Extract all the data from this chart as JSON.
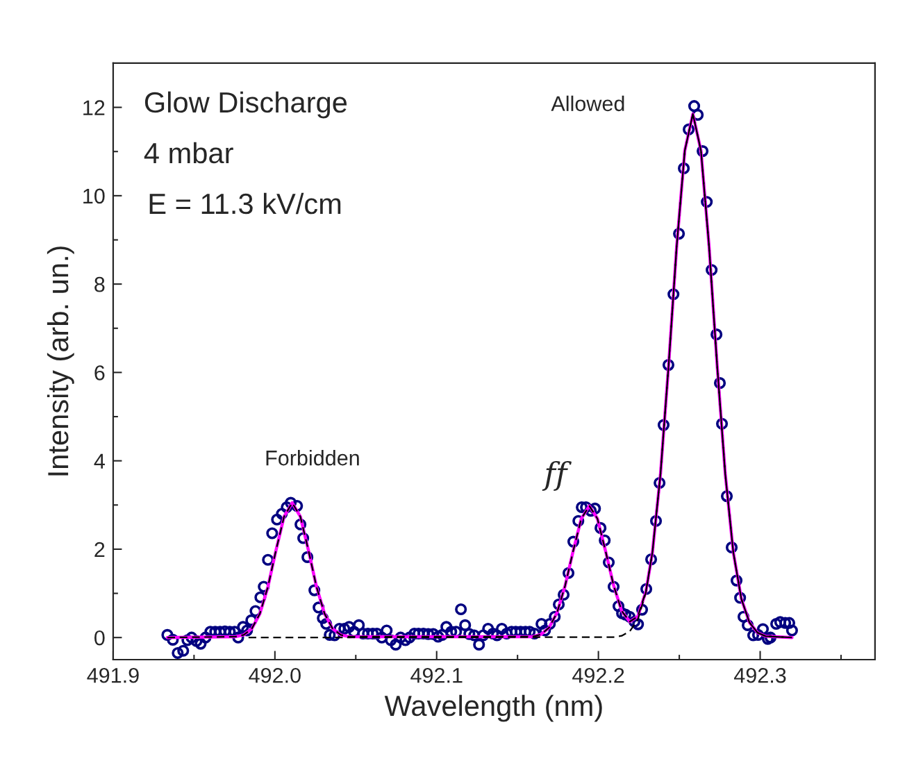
{
  "chart_data": {
    "type": "scatter",
    "xlabel": "Wavelength (nm)",
    "ylabel": "Intensity (arb. un.)",
    "xlim": [
      491.9,
      492.371
    ],
    "ylim": [
      -0.5,
      13
    ],
    "xticks": [
      491.9,
      {
        "value": 491.95,
        "label": null
      },
      {
        "value": 492.0,
        "label": "492.0"
      },
      {
        "value": 492.05,
        "label": null
      },
      {
        "value": 492.1,
        "label": "492.1"
      },
      {
        "value": 492.15,
        "label": null
      },
      {
        "value": 492.2,
        "label": "492.2"
      },
      {
        "value": 492.25,
        "label": null
      },
      {
        "value": 492.3,
        "label": "492.3"
      },
      {
        "value": 492.35,
        "label": null
      }
    ],
    "yticks": [
      0,
      {
        "value": 1,
        "label": null
      },
      2,
      {
        "value": 3,
        "label": null
      },
      4,
      {
        "value": 5,
        "label": null
      },
      6,
      {
        "value": 7,
        "label": null
      },
      8,
      {
        "value": 9,
        "label": null
      },
      10,
      {
        "value": 11,
        "label": null
      },
      12
    ],
    "grid": false,
    "legend": false,
    "annotations": [
      "Glow Discharge",
      "4 mbar",
      "E = 11.3 kV/cm",
      "Allowed",
      "Forbidden",
      "ff"
    ],
    "series": [
      {
        "marker": "circle",
        "color": "#000080",
        "x": [
          491.9335,
          491.9369,
          491.9399,
          491.9433,
          491.9459,
          491.9485,
          491.9515,
          491.9541,
          491.9571,
          491.9601,
          491.9631,
          491.9661,
          491.9691,
          491.9721,
          491.9751,
          491.9773,
          491.9803,
          491.9828,
          491.9854,
          491.988,
          491.991,
          491.9931,
          491.9957,
          491.9983,
          492.0013,
          492.0043,
          492.0073,
          492.0098,
          492.0137,
          492.0158,
          492.0175,
          492.0201,
          492.0244,
          492.027,
          492.0296,
          492.0317,
          492.0339,
          492.0369,
          492.0399,
          492.0429,
          492.0459,
          492.0489,
          492.0519,
          492.0545,
          492.0575,
          492.0605,
          492.0631,
          492.0661,
          492.0691,
          492.0717,
          492.0747,
          492.0777,
          492.0807,
          492.0832,
          492.0862,
          492.0888,
          492.0918,
          492.0948,
          492.0979,
          492.1009,
          492.1034,
          492.106,
          492.109,
          492.112,
          492.115,
          492.1176,
          492.1202,
          492.1232,
          492.1262,
          492.1288,
          492.1318,
          492.1348,
          492.1373,
          492.1403,
          492.1433,
          492.1463,
          492.1489,
          492.1519,
          492.1549,
          492.1575,
          492.1605,
          492.1648,
          492.167,
          492.17,
          492.173,
          492.1755,
          492.1785,
          492.1815,
          492.1845,
          492.1876,
          492.1897,
          492.1923,
          492.1953,
          492.1979,
          492.2013,
          492.2039,
          492.2064,
          492.2094,
          492.2124,
          492.2146,
          492.2167,
          492.2193,
          492.2223,
          492.2245,
          492.227,
          492.2296,
          492.2326,
          492.2356,
          492.2378,
          492.2403,
          492.2433,
          492.2464,
          492.2498,
          492.2528,
          492.2558,
          492.2592,
          492.2614,
          492.2644,
          492.267,
          492.27,
          492.273,
          492.2751,
          492.2764,
          492.2794,
          492.2824,
          492.2854,
          492.2876,
          492.2897,
          492.2923,
          492.2957,
          492.2987,
          492.3017,
          492.3047,
          492.3064,
          492.3099,
          492.3124,
          492.3155,
          492.318,
          492.3197
        ],
        "values": [
          0.06,
          -0.05,
          -0.35,
          -0.3,
          -0.06,
          0,
          -0.08,
          -0.14,
          0,
          0.13,
          0.13,
          0.13,
          0.14,
          0.13,
          0.13,
          0,
          0.24,
          0.16,
          0.39,
          0.6,
          0.91,
          1.15,
          1.76,
          2.36,
          2.67,
          2.8,
          2.95,
          3.05,
          2.98,
          2.56,
          2.25,
          1.82,
          1.07,
          0.68,
          0.44,
          0.31,
          0.06,
          0.05,
          0.2,
          0.2,
          0.24,
          0.13,
          0.28,
          0.09,
          0.09,
          0.09,
          0.09,
          0,
          0.16,
          -0.06,
          -0.16,
          0,
          -0.06,
          0,
          0.09,
          0.09,
          0.09,
          0.08,
          0.08,
          0.02,
          0.06,
          0.24,
          0.13,
          0.13,
          0.64,
          0.28,
          0.08,
          0.05,
          -0.16,
          0.05,
          0.2,
          0.09,
          0.05,
          0.2,
          0.09,
          0.13,
          0.13,
          0.13,
          0.13,
          0.13,
          0.09,
          0.31,
          0.16,
          0.31,
          0.47,
          0.75,
          0.97,
          1.46,
          2.17,
          2.64,
          2.95,
          2.95,
          2.87,
          2.92,
          2.48,
          2.2,
          1.7,
          1.15,
          0.71,
          0.55,
          0.52,
          0.47,
          0.36,
          0.3,
          0.63,
          1.1,
          1.77,
          2.64,
          3.5,
          4.81,
          6.17,
          7.77,
          9.14,
          10.62,
          11.5,
          12.03,
          11.83,
          11.01,
          9.86,
          8.32,
          6.86,
          5.76,
          4.84,
          3.2,
          2.04,
          1.29,
          0.9,
          0.47,
          0.28,
          0.05,
          0.06,
          0.19,
          -0.03,
          0,
          0.31,
          0.35,
          0.33,
          0.33,
          0.16
        ]
      },
      {
        "type": "line",
        "line_style": "solid",
        "color": "#ff00ff",
        "x": [
          491.9335,
          491.9757,
          491.9807,
          491.9857,
          491.9907,
          491.9957,
          492.0007,
          492.0057,
          492.0107,
          492.0157,
          492.0207,
          492.0257,
          492.0307,
          492.0357,
          492.0407,
          492.0457,
          492.1594,
          492.1644,
          492.1694,
          492.1744,
          492.1794,
          492.1844,
          492.1894,
          492.1944,
          492.1994,
          492.2044,
          492.2094,
          492.2144,
          492.2194,
          492.2244,
          492.2294,
          492.2334,
          492.2384,
          492.2434,
          492.2484,
          492.2534,
          492.2584,
          492.2634,
          492.2684,
          492.2734,
          492.2784,
          492.2834,
          492.2884,
          492.2934,
          492.2984,
          492.3034,
          492.3197
        ],
        "values": [
          0,
          0.02,
          0.06,
          0.2,
          0.54,
          1.15,
          1.98,
          2.74,
          3.05,
          2.74,
          1.98,
          1.15,
          0.54,
          0.2,
          0.06,
          0.02,
          0.02,
          0.07,
          0.22,
          0.56,
          1.17,
          1.96,
          2.69,
          2.98,
          2.69,
          1.96,
          1.18,
          0.6,
          0.36,
          0.48,
          1.05,
          1.93,
          3.71,
          6.16,
          8.86,
          11.02,
          11.85,
          11.02,
          8.86,
          6.16,
          3.71,
          1.93,
          0.87,
          0.34,
          0.11,
          0.03,
          0
        ]
      },
      {
        "type": "line",
        "line_style": "dashed",
        "color": "#000000",
        "x": [
          491.9335,
          491.9757,
          491.9807,
          491.9857,
          491.9907,
          491.9957,
          492.0007,
          492.0057,
          492.0107,
          492.0157,
          492.0207,
          492.0257,
          492.0307,
          492.0357,
          492.0407,
          492.0457,
          492.1594,
          492.1644,
          492.1694,
          492.1744,
          492.1794,
          492.1844,
          492.1894,
          492.1944,
          492.1994,
          492.2044,
          492.2094,
          492.2144,
          492.2194,
          492.2244,
          492.2294,
          492.2334,
          492.2384,
          492.2434,
          492.2484,
          492.2534,
          492.2584,
          492.2634,
          492.2684,
          492.2734,
          492.2784,
          492.2834,
          492.2884,
          492.2934,
          492.2984,
          492.3034,
          492.3197
        ],
        "values": [
          0,
          0.02,
          0.06,
          0.2,
          0.54,
          1.15,
          1.98,
          2.74,
          3.05,
          2.74,
          1.98,
          1.15,
          0.54,
          0.2,
          0.06,
          0.02,
          0.02,
          0.07,
          0.22,
          0.56,
          1.17,
          1.96,
          2.69,
          2.98,
          2.69,
          1.96,
          1.18,
          0.6,
          0.36,
          0.48,
          1.05,
          1.93,
          3.71,
          6.16,
          8.86,
          11.02,
          11.85,
          11.02,
          8.86,
          6.16,
          3.71,
          1.93,
          0.87,
          0.34,
          0.11,
          0.03,
          0
        ]
      },
      {
        "type": "line",
        "line_style": "dashed",
        "color": "#000000",
        "x": [
          491.9837,
          492.2094,
          492.2144,
          492.2194,
          492.2244,
          492.2294,
          492.2334,
          492.2384,
          492.2434,
          492.2484,
          492.2534,
          492.2584,
          492.2634,
          492.2684,
          492.2734,
          492.2784,
          492.2834,
          492.2884,
          492.2934,
          492.2984,
          492.3034,
          492.3197
        ],
        "values": [
          0,
          0.01,
          0.04,
          0.14,
          0.41,
          1.03,
          1.93,
          3.71,
          6.16,
          8.86,
          11.02,
          11.85,
          11.02,
          8.86,
          6.16,
          3.71,
          1.93,
          0.87,
          0.34,
          0.11,
          0.03,
          0
        ]
      }
    ]
  }
}
